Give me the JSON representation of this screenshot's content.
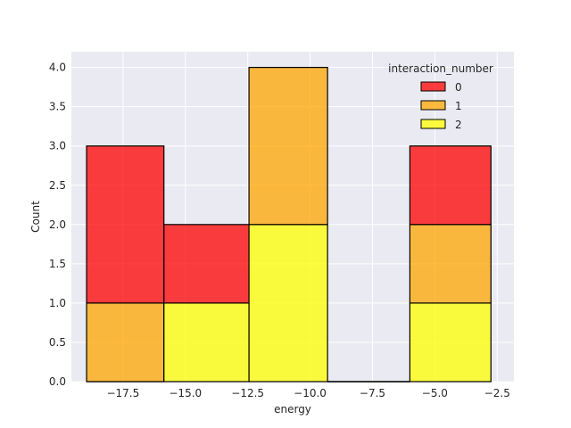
{
  "chart_data": {
    "type": "bar",
    "style": "stacked-histogram",
    "xlabel": "energy",
    "ylabel": "Count",
    "xlim": [
      -19.57,
      -1.83
    ],
    "ylim": [
      0,
      4.2
    ],
    "x_ticks": [
      -17.5,
      -15.0,
      -12.5,
      -10.0,
      -7.5,
      -5.0,
      -2.5
    ],
    "x_tick_labels": [
      "−17.5",
      "−15.0",
      "−12.5",
      "−10.0",
      "−7.5",
      "−5.0",
      "−2.5"
    ],
    "y_ticks": [
      0,
      0.5,
      1,
      1.5,
      2,
      2.5,
      3,
      3.5,
      4
    ],
    "y_tick_labels": [
      "0.0",
      "0.5",
      "1.0",
      "1.5",
      "2.0",
      "2.5",
      "3.0",
      "3.5",
      "4.0"
    ],
    "bins": [
      [
        -18.96,
        -15.86
      ],
      [
        -15.86,
        -12.45
      ],
      [
        -12.45,
        -9.3
      ],
      [
        -9.3,
        -6.0
      ],
      [
        -6.0,
        -2.75
      ]
    ],
    "series": [
      {
        "name": "2",
        "color": "#ffff00",
        "values": [
          0,
          1,
          2,
          0,
          1
        ]
      },
      {
        "name": "1",
        "color": "#ffa500",
        "values": [
          1,
          0,
          2,
          0,
          1
        ]
      },
      {
        "name": "0",
        "color": "#ff0000",
        "values": [
          2,
          1,
          0,
          0,
          1
        ]
      }
    ],
    "legend": {
      "title": "interaction_number",
      "placement": "top-right",
      "entries": [
        {
          "label": "0",
          "color": "#ff0000"
        },
        {
          "label": "1",
          "color": "#ffa500"
        },
        {
          "label": "2",
          "color": "#ffff00"
        }
      ]
    },
    "grid": true,
    "background": "#eaeaf2"
  }
}
